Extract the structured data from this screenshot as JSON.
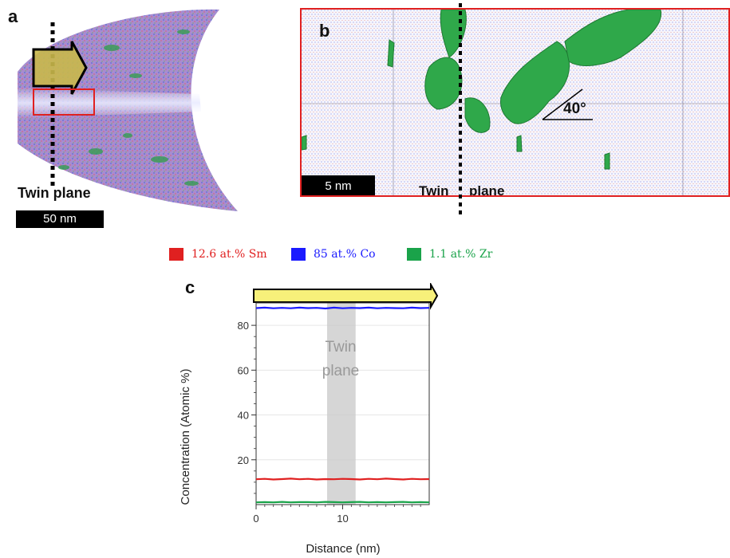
{
  "panel_a": {
    "letter": "a",
    "twin_label": "Twin plane",
    "scale_label": "50 nm"
  },
  "panel_b": {
    "letter": "b",
    "angle_label": "40°",
    "scale_label": "5 nm",
    "twin_label_left": "Twin",
    "twin_label_right": "plane"
  },
  "panel_c": {
    "letter": "c"
  },
  "legend": [
    {
      "label": "12.6 at.% Sm",
      "color": "#e02020"
    },
    {
      "label": "85 at.% Co",
      "color": "#1a1aff"
    },
    {
      "label": "1.1 at.% Zr",
      "color": "#1aa34a"
    }
  ],
  "colors": {
    "sm": "#e02020",
    "co": "#1a1aff",
    "zr": "#1aa34a",
    "arrow_fill": "#f7f07a",
    "box": "#e02020"
  },
  "chart_data": {
    "type": "line",
    "xlabel": "Distance (nm)",
    "ylabel": "Concentration (Atomic %)",
    "xlim": [
      0,
      20
    ],
    "ylim": [
      0,
      90
    ],
    "xticks": [
      0,
      10
    ],
    "yticks": [
      20,
      40,
      60,
      80
    ],
    "twin_band": [
      8.2,
      11.5
    ],
    "annotation": [
      "Twin",
      "plane"
    ],
    "series": [
      {
        "name": "Co",
        "color": "#1a1aff",
        "x": [
          0,
          1,
          2,
          3,
          4,
          5,
          6,
          7,
          8,
          9,
          10,
          11,
          12,
          13,
          14,
          15,
          16,
          17,
          18,
          19,
          20
        ],
        "y": [
          87.7,
          87.9,
          87.6,
          87.8,
          87.6,
          87.9,
          87.7,
          87.8,
          87.5,
          87.9,
          87.6,
          87.8,
          87.7,
          87.9,
          87.6,
          87.8,
          87.7,
          87.6,
          87.9,
          87.7,
          87.8
        ]
      },
      {
        "name": "Sm",
        "color": "#e02020",
        "x": [
          0,
          1,
          2,
          3,
          4,
          5,
          6,
          7,
          8,
          9,
          10,
          11,
          12,
          13,
          14,
          15,
          16,
          17,
          18,
          19,
          20
        ],
        "y": [
          11.3,
          11.5,
          11.2,
          11.4,
          11.6,
          11.3,
          11.5,
          11.2,
          11.4,
          11.3,
          11.5,
          11.4,
          11.2,
          11.5,
          11.3,
          11.6,
          11.4,
          11.2,
          11.5,
          11.3,
          11.4
        ]
      },
      {
        "name": "Zr",
        "color": "#1aa34a",
        "x": [
          0,
          1,
          2,
          3,
          4,
          5,
          6,
          7,
          8,
          9,
          10,
          11,
          12,
          13,
          14,
          15,
          16,
          17,
          18,
          19,
          20
        ],
        "y": [
          1.0,
          1.1,
          1.0,
          1.2,
          1.0,
          1.1,
          1.1,
          1.0,
          1.2,
          1.1,
          1.0,
          1.1,
          1.2,
          1.0,
          1.1,
          1.0,
          1.1,
          1.2,
          1.0,
          1.1,
          1.0
        ]
      }
    ]
  }
}
